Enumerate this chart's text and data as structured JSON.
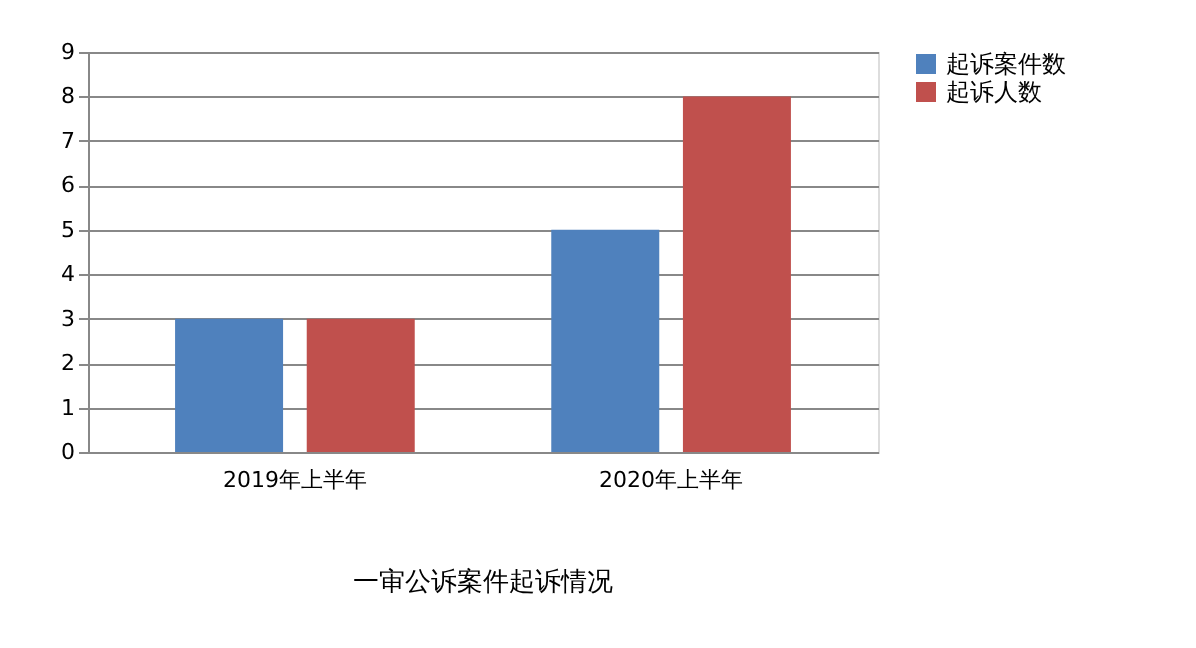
{
  "chart_data": {
    "type": "bar",
    "title": "一审公诉案件起诉情况",
    "categories": [
      "2019年上半年",
      "2020年上半年"
    ],
    "series": [
      {
        "name": "起诉案件数",
        "color": "#4f81bd",
        "values": [
          3,
          5
        ]
      },
      {
        "name": "起诉人数",
        "color": "#c0504d",
        "values": [
          3,
          8
        ]
      }
    ],
    "ylim": [
      0,
      9
    ],
    "yticks": [
      0,
      1,
      2,
      3,
      4,
      5,
      6,
      7,
      8,
      9
    ],
    "grid": "y",
    "legend": "right"
  }
}
